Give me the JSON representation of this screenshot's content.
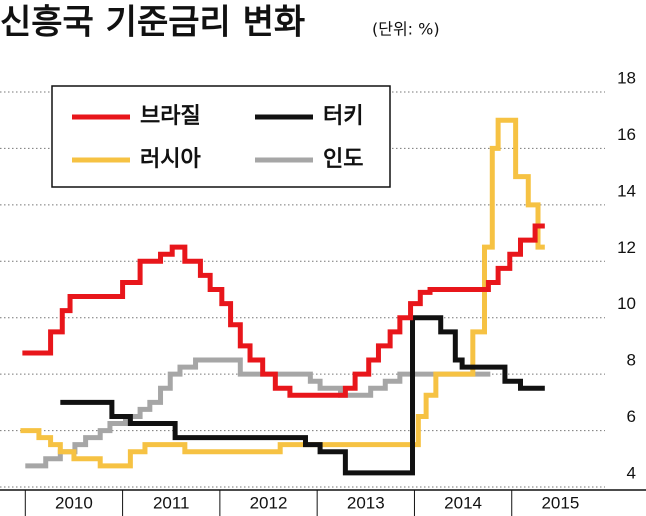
{
  "chart_data": {
    "type": "step-line",
    "title": "신흥국 기준금리 변화",
    "subtitle": "(단위: %)",
    "xlim": [
      2009.74,
      2016.38
    ],
    "xticks": [
      {
        "value": 2010,
        "label": "2010"
      },
      {
        "value": 2011,
        "label": "2011"
      },
      {
        "value": 2012,
        "label": "2012"
      },
      {
        "value": 2013,
        "label": "2013"
      },
      {
        "value": 2014,
        "label": "2014"
      },
      {
        "value": 2015,
        "label": "2015"
      }
    ],
    "ylim": [
      4,
      18
    ],
    "yticks": [
      4,
      6,
      8,
      10,
      12,
      14,
      16,
      18
    ],
    "grid": true,
    "legend": "upper left",
    "series": [
      {
        "name": "브라질",
        "color": "#e8161b",
        "x": [
          2009.97,
          2010.26,
          2010.38,
          2010.46,
          2011.0,
          2011.18,
          2011.39,
          2011.51,
          2011.64,
          2011.8,
          2011.9,
          2012.02,
          2012.11,
          2012.21,
          2012.31,
          2012.44,
          2012.57,
          2012.72,
          2013.29,
          2013.39,
          2013.53,
          2013.63,
          2013.75,
          2013.85,
          2013.96,
          2014.06,
          2014.16,
          2014.76,
          2014.86,
          2014.98,
          2015.09,
          2015.24,
          2015.34
        ],
        "values": [
          8.75,
          9.5,
          10.25,
          10.75,
          11.25,
          12,
          12.25,
          12.5,
          12,
          11.5,
          11,
          10.5,
          9.75,
          9,
          8.5,
          8,
          7.5,
          7.25,
          7.5,
          8,
          8.5,
          9,
          9.5,
          10,
          10.5,
          10.9,
          11,
          11.25,
          11.75,
          12.25,
          12.75,
          13.25,
          13.25
        ]
      },
      {
        "name": "터키",
        "color": "#111111",
        "x": [
          2010.36,
          2010.89,
          2011.08,
          2011.54,
          2012.88,
          2013.03,
          2013.29,
          2013.98,
          2014.27,
          2014.42,
          2014.49,
          2014.93,
          2015.09,
          2015.34
        ],
        "values": [
          7,
          6.5,
          6.25,
          5.75,
          5.5,
          5.25,
          4.5,
          10,
          9.5,
          8.5,
          8.25,
          7.75,
          7.5,
          7.5
        ]
      },
      {
        "name": "러시아",
        "color": "#f6c243",
        "x": [
          2009.95,
          2010.14,
          2010.26,
          2010.36,
          2010.5,
          2010.77,
          2011.08,
          2011.23,
          2011.64,
          2012.62,
          2014.04,
          2014.12,
          2014.22,
          2014.6,
          2014.72,
          2014.8,
          2014.86,
          2015.04,
          2015.17,
          2015.27,
          2015.34
        ],
        "values": [
          6,
          5.75,
          5.5,
          5.25,
          5,
          4.75,
          5.25,
          5.5,
          5.25,
          5.5,
          6.5,
          7.25,
          8,
          9.5,
          12.5,
          16,
          17,
          15,
          14,
          12.5,
          12.5
        ]
      },
      {
        "name": "인도",
        "color": "#a6a6a6",
        "x": [
          2010.0,
          2010.21,
          2010.36,
          2010.51,
          2010.62,
          2010.77,
          2010.87,
          2011.03,
          2011.18,
          2011.28,
          2011.39,
          2011.49,
          2011.59,
          2011.75,
          2012.21,
          2012.93,
          2013.03,
          2013.24,
          2013.55,
          2013.7,
          2013.85,
          2014.78
        ],
        "values": [
          4.75,
          5,
          5.25,
          5.5,
          5.75,
          6,
          6.25,
          6.5,
          6.75,
          7,
          7.5,
          8,
          8.25,
          8.5,
          8,
          7.75,
          7.5,
          7.25,
          7.5,
          7.75,
          8,
          8
        ]
      }
    ]
  }
}
